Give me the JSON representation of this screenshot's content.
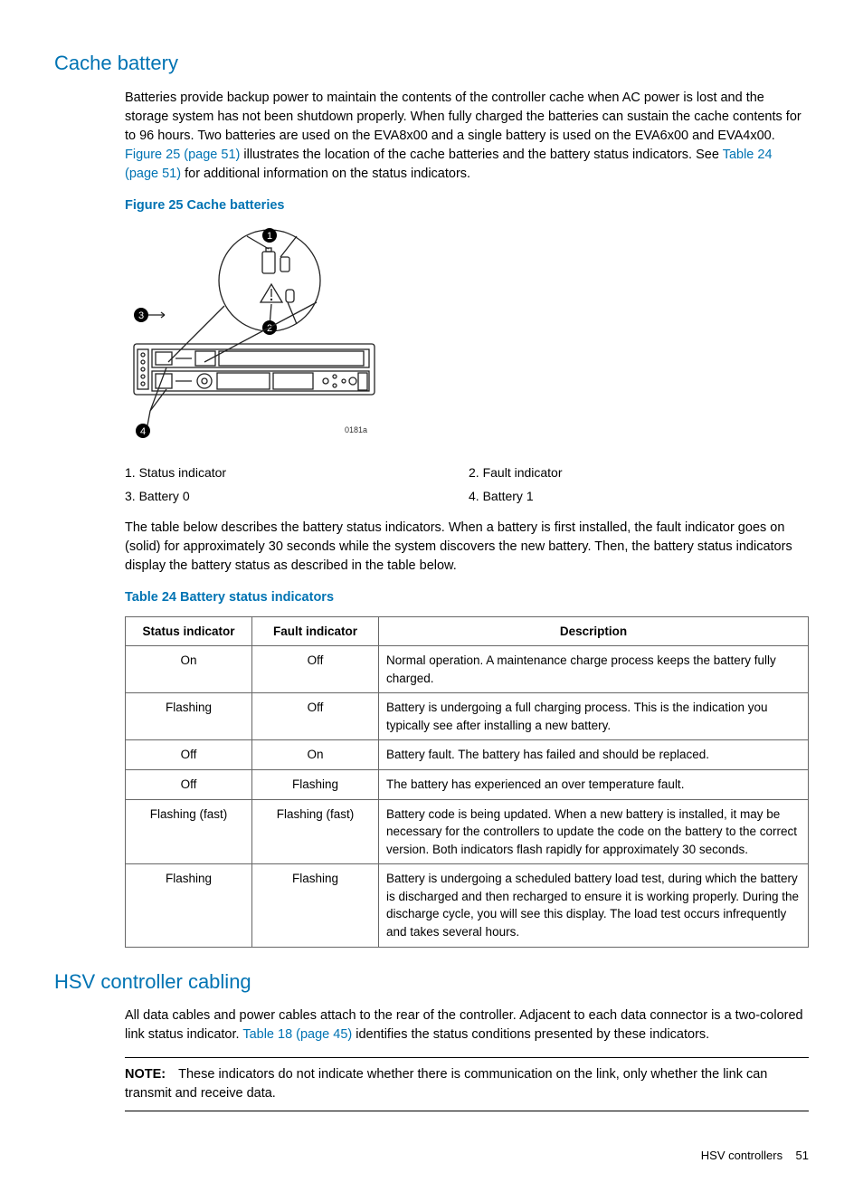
{
  "colors": {
    "accent": "#0073b3",
    "text": "#000000",
    "border": "#666666",
    "rule": "#000000"
  },
  "section1": {
    "heading": "Cache battery",
    "para1_a": "Batteries provide backup power to maintain the contents of the controller cache when AC power is lost and the storage system has not been shutdown properly. When fully charged the batteries can sustain the cache contents for to 96 hours. Two batteries are used on the EVA8x00 and a single battery is used on the EVA6x00 and EVA4x00. ",
    "para1_link1": "Figure 25 (page 51)",
    "para1_b": " illustrates the location of the cache batteries and the battery status indicators. See ",
    "para1_link2": "Table 24 (page 51)",
    "para1_c": " for additional information on the status indicators."
  },
  "figure": {
    "title": "Figure 25 Cache batteries",
    "img_tag": "0181a",
    "callouts": [
      {
        "n": "1.",
        "t": "Status indicator"
      },
      {
        "n": "2.",
        "t": "Fault indicator"
      },
      {
        "n": "3.",
        "t": "Battery 0"
      },
      {
        "n": "4.",
        "t": "Battery 1"
      }
    ]
  },
  "between_para": "The table below describes the battery status indicators. When a battery is first installed, the fault indicator goes on (solid) for approximately 30 seconds while the system discovers the new battery. Then, the battery status indicators display the battery status as described in the table below.",
  "table": {
    "title": "Table 24 Battery status indicators",
    "headers": [
      "Status indicator",
      "Fault indicator",
      "Description"
    ],
    "col_widths": [
      "140px",
      "140px",
      "auto"
    ],
    "rows": [
      [
        "On",
        "Off",
        "Normal operation. A maintenance charge process keeps the battery fully charged."
      ],
      [
        "Flashing",
        "Off",
        "Battery is undergoing a full charging process. This is the indication you typically see after installing a new battery."
      ],
      [
        "Off",
        "On",
        "Battery fault. The battery has failed and should be replaced."
      ],
      [
        "Off",
        "Flashing",
        "The battery has experienced an over temperature fault."
      ],
      [
        "Flashing (fast)",
        "Flashing (fast)",
        "Battery code is being updated. When a new battery is installed, it may be necessary for the controllers to update the code on the battery to the correct version. Both indicators flash rapidly for approximately 30 seconds."
      ],
      [
        "Flashing",
        "Flashing",
        "Battery is undergoing a scheduled battery load test, during which the battery is discharged and then recharged to ensure it is working properly. During the discharge cycle, you will see this display. The load test occurs infrequently and takes several hours."
      ]
    ]
  },
  "section2": {
    "heading": "HSV controller cabling",
    "para_a": "All data cables and power cables attach to the rear of the controller. Adjacent to each data connector is a two-colored link status indicator. ",
    "para_link": "Table 18 (page 45)",
    "para_b": " identifies the status conditions presented by these indicators.",
    "note_label": "NOTE:",
    "note_text": "These indicators do not indicate whether there is communication on the link, only whether the link can transmit and receive data."
  },
  "footer": {
    "left": "HSV controllers",
    "page": "51"
  }
}
